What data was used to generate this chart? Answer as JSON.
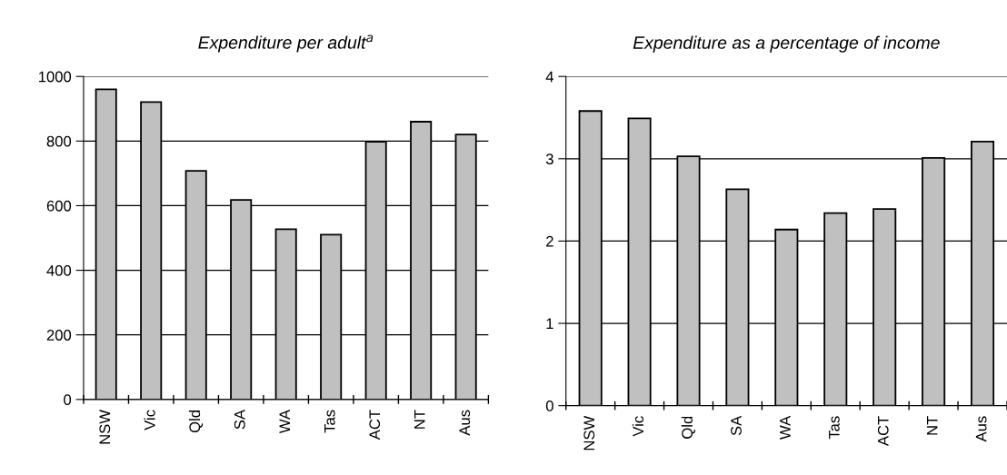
{
  "chart_data": [
    {
      "type": "bar",
      "title": "Expenditure per adult$^{a}$",
      "categories": [
        "NSW",
        "Vic",
        "Qld",
        "SA",
        "WA",
        "Tas",
        "ACT",
        "NT",
        "Aus"
      ],
      "values": [
        960,
        921,
        708,
        618,
        527,
        510,
        798,
        860,
        820
      ],
      "color": "#c0c0c0",
      "ylim": [
        0,
        1000
      ],
      "yticks": [
        0,
        200,
        400,
        600,
        800,
        1000
      ],
      "grid": "y"
    },
    {
      "type": "bar",
      "title": "Expenditure as a percentage of income",
      "categories": [
        "NSW",
        "Vic",
        "Qld",
        "SA",
        "WA",
        "Tas",
        "ACT",
        "NT",
        "Aus"
      ],
      "values": [
        3.58,
        3.49,
        3.03,
        2.63,
        2.14,
        2.34,
        2.39,
        3.01,
        3.21
      ],
      "color": "#c0c0c0",
      "ylim": [
        0,
        4
      ],
      "yticks": [
        0,
        1,
        2,
        3,
        4
      ],
      "grid": "y"
    }
  ]
}
